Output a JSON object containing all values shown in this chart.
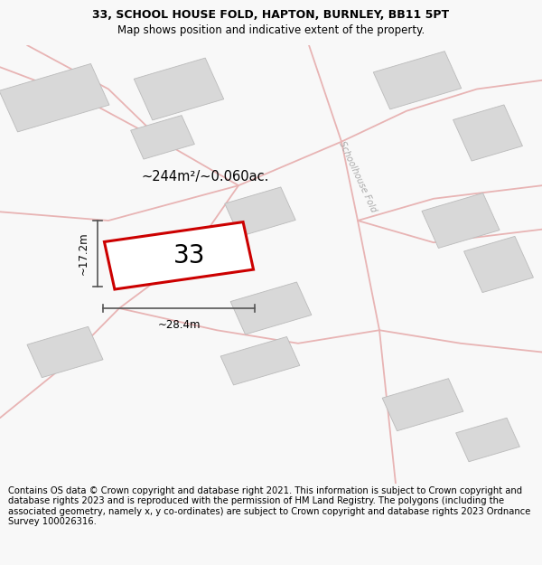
{
  "title_line1": "33, SCHOOL HOUSE FOLD, HAPTON, BURNLEY, BB11 5PT",
  "title_line2": "Map shows position and indicative extent of the property.",
  "footer_text": "Contains OS data © Crown copyright and database right 2021. This information is subject to Crown copyright and database rights 2023 and is reproduced with the permission of HM Land Registry. The polygons (including the associated geometry, namely x, y co-ordinates) are subject to Crown copyright and database rights 2023 Ordnance Survey 100026316.",
  "area_label": "~244m²/~0.060ac.",
  "street_label": "Schoolhouse Fold",
  "plot_number": "33",
  "width_label": "~28.4m",
  "height_label": "~17.2m",
  "bg_color": "#f8f8f8",
  "map_bg": "#f0f0f0",
  "plot_color_edge": "#cc0000",
  "road_color": "#e8b4b4",
  "building_color": "#d8d8d8",
  "building_edge": "#bbbbbb",
  "dim_color": "#555555",
  "title_fontsize": 9,
  "footer_fontsize": 7.2
}
